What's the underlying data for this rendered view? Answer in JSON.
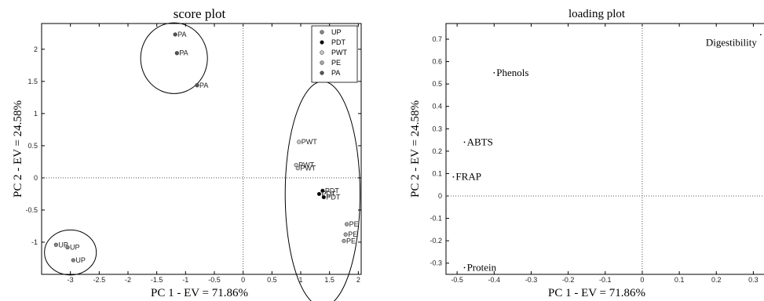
{
  "chart_data": [
    {
      "type": "scatter",
      "title": "score plot",
      "xlabel": "PC 1 - EV = 71.86%",
      "ylabel": "PC 2 - EV = 24.58%",
      "xlim": [
        -3.5,
        2.05
      ],
      "ylim": [
        -1.5,
        2.4
      ],
      "xticks": [
        "-3",
        "-2.5",
        "-2",
        "-1.5",
        "-1",
        "-0.5",
        "0",
        "0.5",
        "1",
        "1.5",
        "2"
      ],
      "yticks": [
        "-1",
        "-0.5",
        "0",
        "0.5",
        "1",
        "1.5",
        "2"
      ],
      "grid": false,
      "legend_position": "top-right",
      "series": [
        {
          "name": "UP",
          "color": "#888888",
          "points": [
            {
              "x": -3.25,
              "y": -1.04,
              "label": "UP"
            },
            {
              "x": -3.05,
              "y": -1.08,
              "label": "UP"
            },
            {
              "x": -2.95,
              "y": -1.28,
              "label": "UP"
            }
          ]
        },
        {
          "name": "PDT",
          "color": "#000000",
          "points": [
            {
              "x": 1.38,
              "y": -0.2,
              "label": "PDT"
            },
            {
              "x": 1.32,
              "y": -0.25,
              "label": "PDT"
            },
            {
              "x": 1.4,
              "y": -0.3,
              "label": "PDT"
            }
          ]
        },
        {
          "name": "PWT",
          "color": "#cccccc",
          "points": [
            {
              "x": 0.97,
              "y": 0.56,
              "label": "PWT"
            },
            {
              "x": 0.92,
              "y": 0.2,
              "label": "PWT"
            },
            {
              "x": 0.95,
              "y": 0.15,
              "label": "PWT"
            }
          ]
        },
        {
          "name": "PE",
          "color": "#aaaaaa",
          "points": [
            {
              "x": 1.8,
              "y": -0.72,
              "label": "PE"
            },
            {
              "x": 1.78,
              "y": -0.88,
              "label": "PE"
            },
            {
              "x": 1.75,
              "y": -0.98,
              "label": "PE"
            }
          ]
        },
        {
          "name": "PA",
          "color": "#555555",
          "points": [
            {
              "x": -1.18,
              "y": 2.23,
              "label": "PA"
            },
            {
              "x": -1.15,
              "y": 1.94,
              "label": "PA"
            },
            {
              "x": -0.8,
              "y": 1.44,
              "label": "PA"
            }
          ]
        }
      ],
      "ellipses": [
        {
          "cx": -1.2,
          "cy": 1.86,
          "rx": 0.58,
          "ry": 0.55
        },
        {
          "cx": 1.38,
          "cy": -0.25,
          "rx": 0.65,
          "ry": 1.75
        },
        {
          "cx": -3.0,
          "cy": -1.16,
          "rx": 0.45,
          "ry": 0.35
        }
      ]
    },
    {
      "type": "scatter",
      "title": "loading plot",
      "xlabel": "PC 1 - EV = 71.86%",
      "ylabel": "PC 2 - EV = 24.58%",
      "xlim": [
        -0.53,
        0.35
      ],
      "ylim": [
        -0.35,
        0.77
      ],
      "xticks": [
        "-0.5",
        "-0.4",
        "-0.3",
        "-0.2",
        "-0.1",
        "0",
        "0.1",
        "0.2",
        "0.3"
      ],
      "yticks": [
        "-0.3",
        "-0.2",
        "-0.1",
        "0",
        "0.1",
        "0.2",
        "0.3",
        "0.4",
        "0.5",
        "0.6",
        "0.7"
      ],
      "grid": false,
      "points": [
        {
          "x": 0.32,
          "y": 0.72,
          "label": "Digestibility"
        },
        {
          "x": -0.4,
          "y": 0.55,
          "label": "Phenols"
        },
        {
          "x": -0.48,
          "y": 0.24,
          "label": "ABTS"
        },
        {
          "x": -0.51,
          "y": 0.085,
          "label": "FRAP"
        },
        {
          "x": -0.48,
          "y": -0.32,
          "label": "Protein"
        }
      ]
    }
  ]
}
